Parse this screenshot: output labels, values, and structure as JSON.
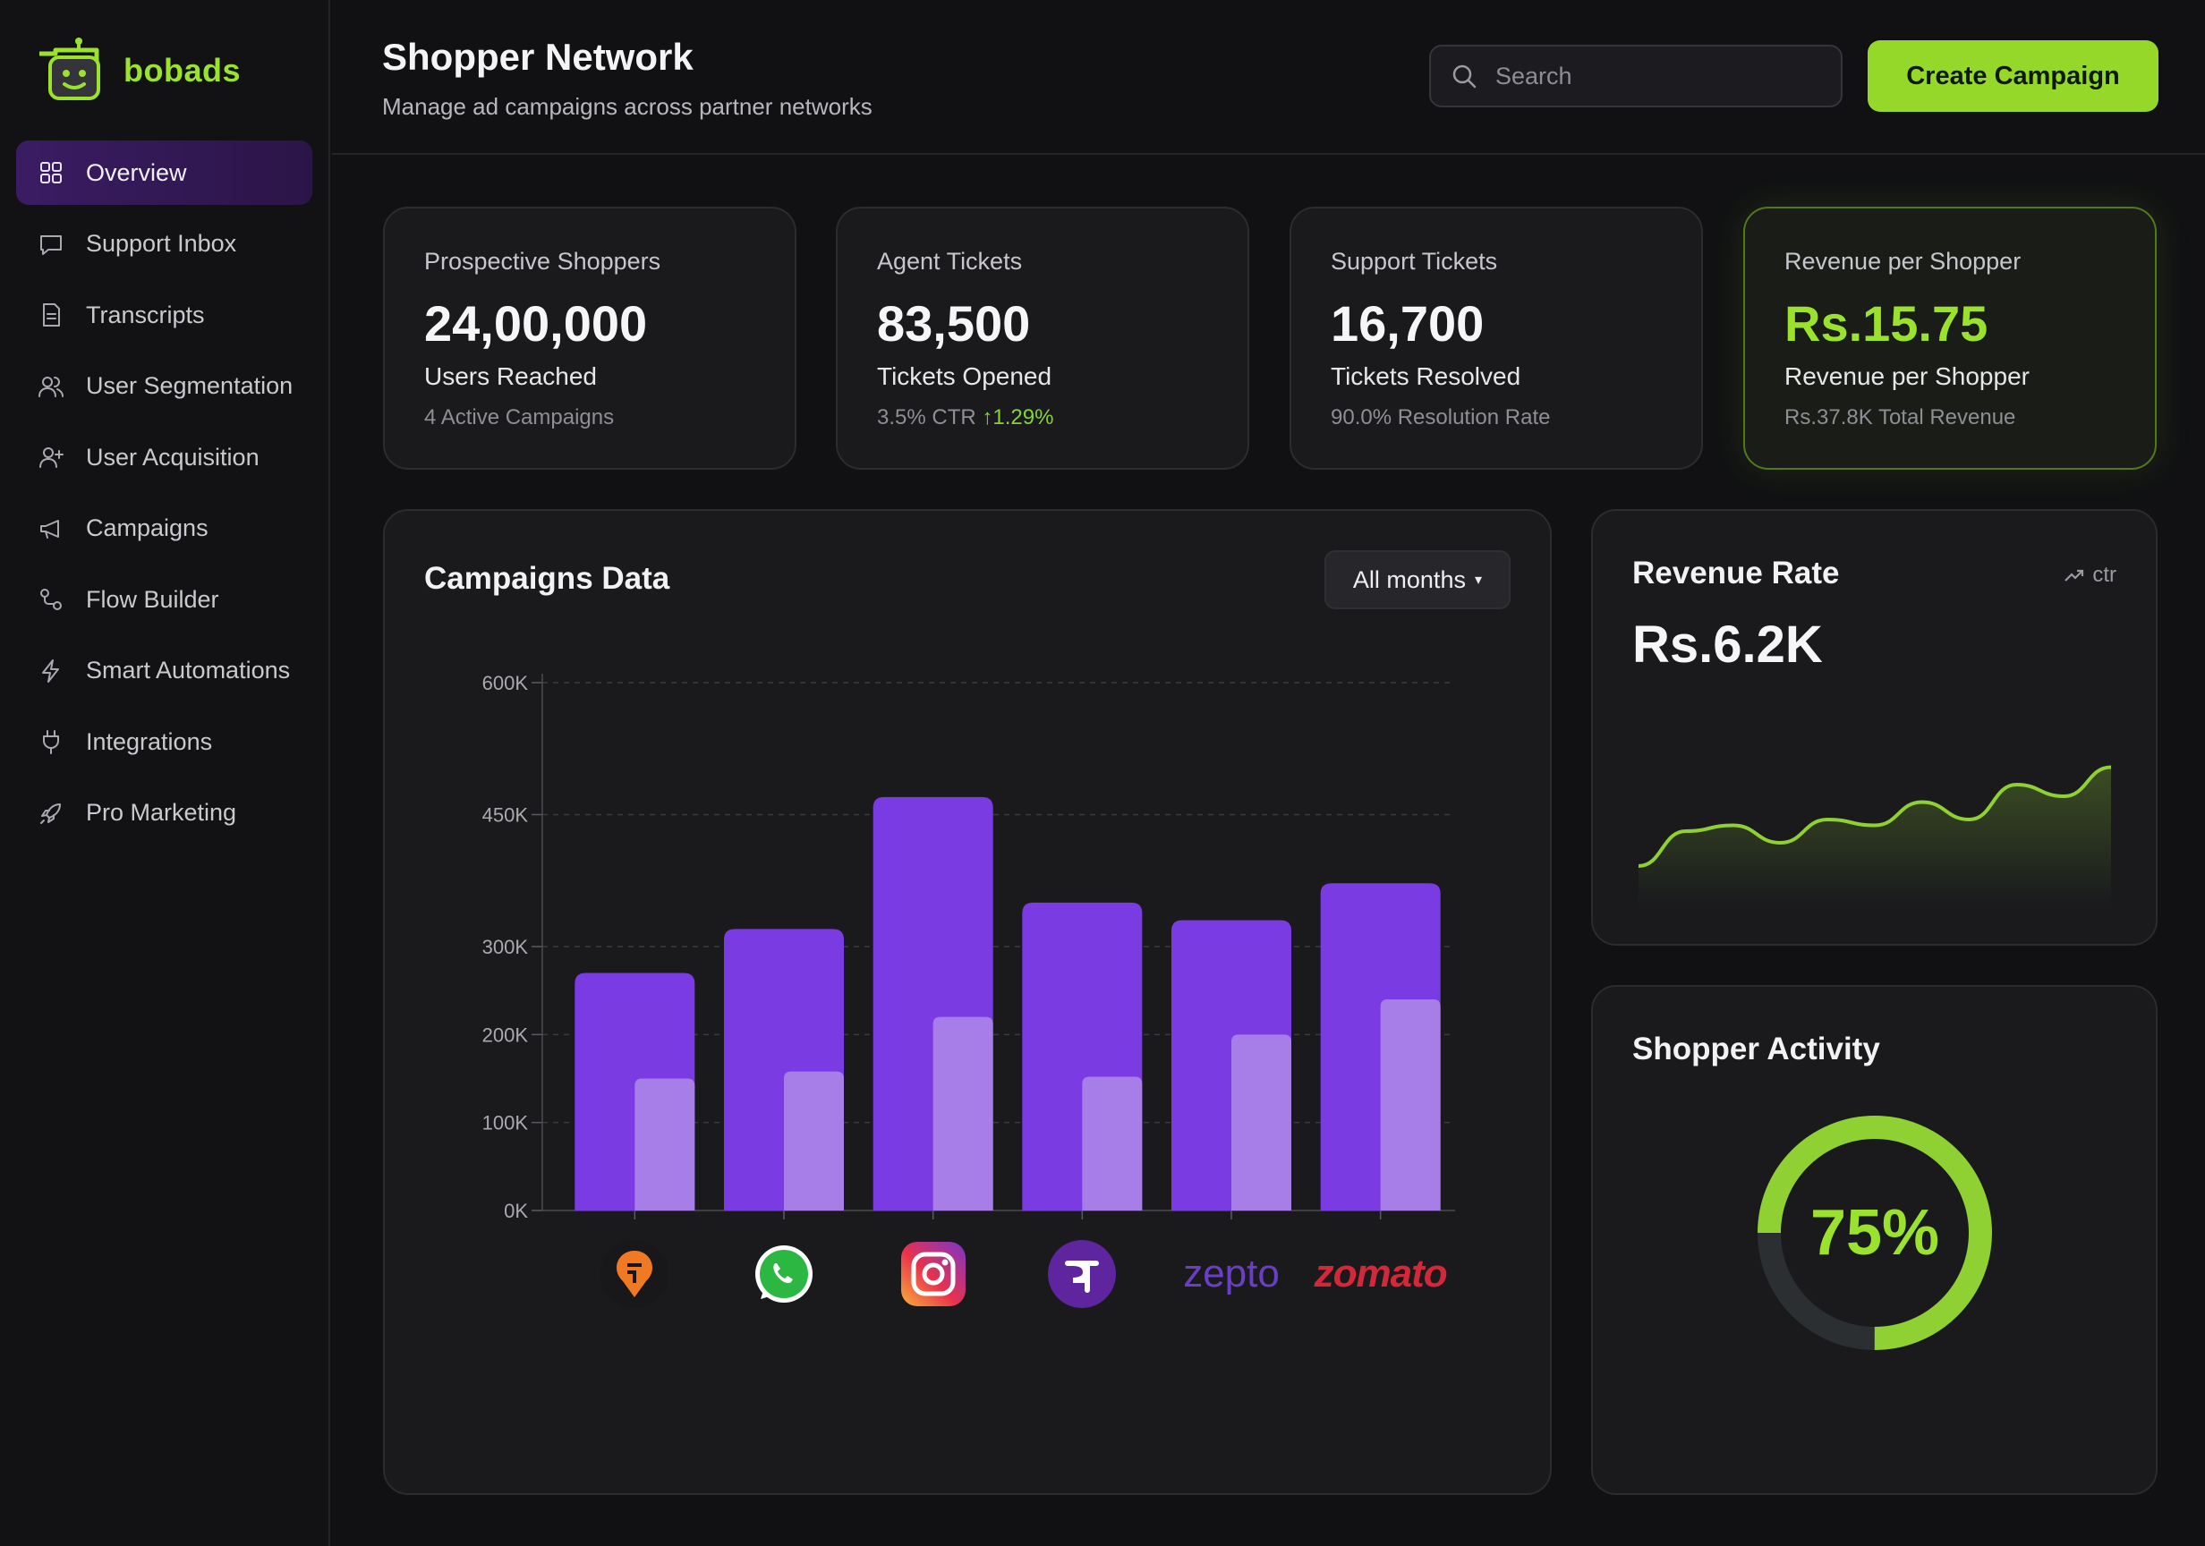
{
  "brand": {
    "name": "bobads",
    "logo_icon": "robot-tv-icon",
    "accent": "#9BE22F"
  },
  "sidebar": {
    "items": [
      {
        "label": "Overview",
        "icon": "grid-icon",
        "active": true
      },
      {
        "label": "Support Inbox",
        "icon": "chat-icon"
      },
      {
        "label": "Transcripts",
        "icon": "document-icon"
      },
      {
        "label": "User Segmentation",
        "icon": "users-icon"
      },
      {
        "label": "User Acquisition",
        "icon": "user-add-icon"
      },
      {
        "label": "Campaigns",
        "icon": "megaphone-icon"
      },
      {
        "label": "Flow Builder",
        "icon": "flow-icon"
      },
      {
        "label": "Smart Automations",
        "icon": "bolt-icon"
      },
      {
        "label": "Integrations",
        "icon": "plug-icon"
      },
      {
        "label": "Pro Marketing",
        "icon": "rocket-icon"
      }
    ]
  },
  "header": {
    "title": "Shopper Network",
    "subtitle": "Manage ad campaigns across partner networks",
    "search_placeholder": "Search",
    "cta_label": "Create Campaign"
  },
  "stats": [
    {
      "label": "Prospective Shoppers",
      "value": "24,00,000",
      "sub": "Users Reached",
      "meta": "4 Active Campaigns"
    },
    {
      "label": "Agent Tickets",
      "value": "83,500",
      "sub": "Tickets Opened",
      "meta": "3.5% CTR",
      "trend": "↑1.29%"
    },
    {
      "label": "Support Tickets",
      "value": "16,700",
      "sub": "Tickets Resolved",
      "meta": "90.0% Resolution Rate"
    },
    {
      "label": "Revenue per Shopper",
      "value": "Rs.15.75",
      "sub": "Revenue per Shopper",
      "meta": "Rs.37.8K Total Revenue"
    }
  ],
  "campaigns": {
    "title": "Campaigns Data",
    "filter_label": "All months"
  },
  "chart_data": {
    "type": "bar",
    "categories": [
      "swiggy",
      "whatsapp",
      "instagram",
      "phonepe",
      "zepto",
      "zomato"
    ],
    "series": [
      {
        "values": [
          270000,
          320000,
          470000,
          350000,
          330000,
          372000
        ],
        "color": "#7B3BE3"
      },
      {
        "values": [
          150000,
          158000,
          220000,
          152000,
          200000,
          240000
        ],
        "color": "#A77EE8"
      }
    ],
    "yticks": [
      "0K",
      "100K",
      "200K",
      "300K",
      "450K",
      "600K"
    ],
    "ytick_values": [
      0,
      100000,
      200000,
      300000,
      450000,
      600000
    ],
    "ylim": [
      0,
      600000
    ],
    "grid": true,
    "x_labels_as_logos": true,
    "logo_text": {
      "zepto": "zepto",
      "zomato": "zomato"
    }
  },
  "revenue_rate": {
    "title": "Revenue Rate",
    "badge": "ctr",
    "value": "Rs.6.2K",
    "sparkline": [
      0.1,
      0.4,
      0.45,
      0.3,
      0.5,
      0.45,
      0.65,
      0.5,
      0.8,
      0.7,
      0.95
    ],
    "line_color": "#8FD132"
  },
  "shopper_activity": {
    "title": "Shopper Activity",
    "percent": 75,
    "percent_label": "75%",
    "ring_color": "#8FD132",
    "track_color": "#2B2F31"
  }
}
